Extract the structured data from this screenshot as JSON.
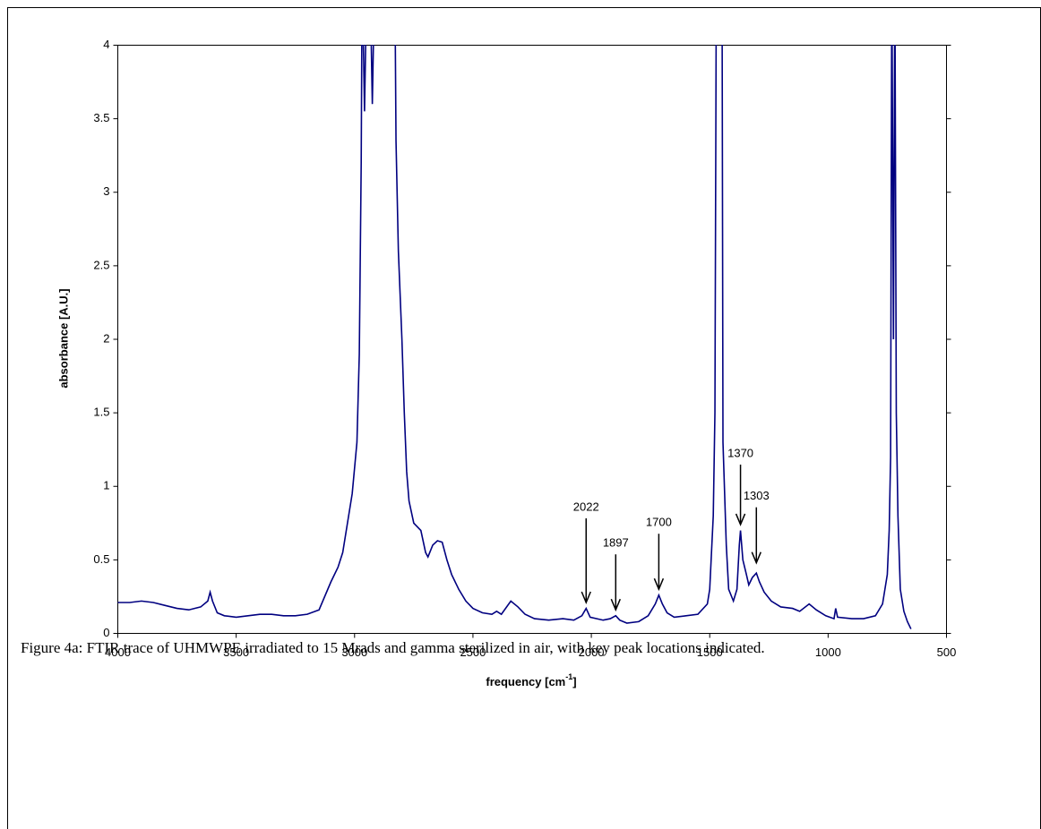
{
  "chart_data": {
    "type": "line",
    "y_label": "absorbance [A.U.]",
    "x_label": [
      "frequency [cm",
      "-1",
      "]"
    ],
    "xlim": [
      4000,
      500
    ],
    "xticks": [
      4000,
      3500,
      3000,
      2500,
      2000,
      1500,
      1000,
      500
    ],
    "ylim": [
      0,
      4
    ],
    "yticks": [
      0,
      0.5,
      1,
      1.5,
      2,
      2.5,
      3,
      3.5,
      4
    ],
    "x": [
      4000,
      3950,
      3900,
      3850,
      3800,
      3750,
      3700,
      3650,
      3620,
      3610,
      3600,
      3580,
      3550,
      3500,
      3450,
      3400,
      3350,
      3300,
      3250,
      3200,
      3150,
      3100,
      3070,
      3050,
      3030,
      3010,
      2990,
      2980,
      2972,
      2968,
      2958,
      2948,
      2935,
      2925,
      2915,
      2830,
      2825,
      2815,
      2800,
      2790,
      2780,
      2770,
      2750,
      2720,
      2700,
      2690,
      2670,
      2650,
      2630,
      2610,
      2590,
      2560,
      2530,
      2500,
      2460,
      2420,
      2400,
      2380,
      2340,
      2310,
      2280,
      2240,
      2180,
      2120,
      2074,
      2040,
      2022,
      2005,
      1950,
      1920,
      1897,
      1880,
      1850,
      1800,
      1760,
      1730,
      1715,
      1700,
      1680,
      1650,
      1600,
      1550,
      1510,
      1500,
      1485,
      1478,
      1472,
      1448,
      1444,
      1430,
      1420,
      1400,
      1385,
      1375,
      1370,
      1360,
      1345,
      1335,
      1320,
      1303,
      1290,
      1270,
      1240,
      1200,
      1150,
      1120,
      1080,
      1050,
      1010,
      975,
      968,
      960,
      900,
      850,
      800,
      770,
      750,
      742,
      736,
      731,
      724,
      718,
      712,
      705,
      695,
      680,
      665,
      650
    ],
    "series": [
      {
        "color": "#000080",
        "values": [
          0.21,
          0.21,
          0.22,
          0.21,
          0.19,
          0.17,
          0.16,
          0.18,
          0.22,
          0.28,
          0.22,
          0.14,
          0.12,
          0.11,
          0.12,
          0.13,
          0.13,
          0.12,
          0.12,
          0.13,
          0.16,
          0.35,
          0.45,
          0.55,
          0.75,
          0.95,
          1.3,
          1.9,
          3.2,
          4.5,
          3.55,
          4.5,
          4.5,
          3.6,
          4.5,
          4.5,
          3.35,
          2.6,
          2,
          1.5,
          1.1,
          0.9,
          0.75,
          0.7,
          0.55,
          0.52,
          0.6,
          0.63,
          0.62,
          0.5,
          0.4,
          0.3,
          0.22,
          0.17,
          0.14,
          0.13,
          0.15,
          0.13,
          0.22,
          0.18,
          0.13,
          0.1,
          0.09,
          0.1,
          0.09,
          0.12,
          0.17,
          0.11,
          0.09,
          0.1,
          0.12,
          0.09,
          0.07,
          0.08,
          0.12,
          0.2,
          0.26,
          0.2,
          0.14,
          0.11,
          0.12,
          0.13,
          0.2,
          0.3,
          0.8,
          1.5,
          4.5,
          4.5,
          1.3,
          0.6,
          0.3,
          0.22,
          0.3,
          0.6,
          0.7,
          0.5,
          0.4,
          0.33,
          0.38,
          0.41,
          0.35,
          0.28,
          0.22,
          0.18,
          0.17,
          0.15,
          0.2,
          0.16,
          0.12,
          0.1,
          0.17,
          0.11,
          0.1,
          0.1,
          0.12,
          0.2,
          0.4,
          0.7,
          1.2,
          4.5,
          2,
          4.5,
          1.5,
          0.8,
          0.3,
          0.15,
          0.08,
          0.03
        ]
      }
    ],
    "annotations": [
      {
        "text": "2022",
        "x": 2022,
        "y": 0.21
      },
      {
        "text": "1897",
        "x": 1897,
        "y": 0.16
      },
      {
        "text": "1700",
        "x": 1715,
        "y": 0.3
      },
      {
        "text": "1370",
        "x": 1370,
        "y": 0.74
      },
      {
        "text": "1303",
        "x": 1303,
        "y": 0.48
      }
    ]
  },
  "caption": "Figure 4a: FTIR trace of UHMWPE irradiated to 15 Mrads and gamma sterilized in air, with key peak locations indicated."
}
